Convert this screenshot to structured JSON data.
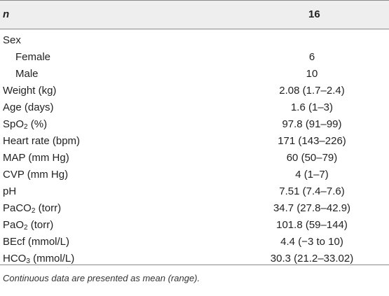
{
  "header": {
    "label": "n",
    "value": "16"
  },
  "rows": [
    {
      "pre": "Sex",
      "sub": "",
      "post": "",
      "value": ""
    },
    {
      "pre": "Female",
      "sub": "",
      "post": "",
      "value": "6",
      "indent": true
    },
    {
      "pre": "Male",
      "sub": "",
      "post": "",
      "value": "10",
      "indent": true
    },
    {
      "pre": "Weight (kg)",
      "sub": "",
      "post": "",
      "value": "2.08 (1.7–2.4)"
    },
    {
      "pre": "Age (days)",
      "sub": "",
      "post": "",
      "value": "1.6 (1–3)"
    },
    {
      "pre": "SpO",
      "sub": "2",
      "post": " (%)",
      "value": "97.8 (91–99)"
    },
    {
      "pre": "Heart rate (bpm)",
      "sub": "",
      "post": "",
      "value": "171 (143–226)"
    },
    {
      "pre": "MAP (mm Hg)",
      "sub": "",
      "post": "",
      "value": "60 (50–79)"
    },
    {
      "pre": "CVP (mm Hg)",
      "sub": "",
      "post": "",
      "value": "4 (1–7)"
    },
    {
      "pre": "pH",
      "sub": "",
      "post": "",
      "value": "7.51 (7.4–7.6)"
    },
    {
      "pre": "PaCO",
      "sub": "2",
      "post": " (torr)",
      "value": "34.7 (27.8–42.9)"
    },
    {
      "pre": "PaO",
      "sub": "2",
      "post": " (torr)",
      "value": "101.8 (59–144)"
    },
    {
      "pre": "BEcf (mmol/L)",
      "sub": "",
      "post": "",
      "value": "4.4 (−3 to 10)"
    },
    {
      "pre": "HCO",
      "sub": "3",
      "post": " (mmol/L)",
      "value": "30.3 (21.2–33.02)"
    }
  ],
  "footnote": "Continuous data are presented as mean (range)."
}
